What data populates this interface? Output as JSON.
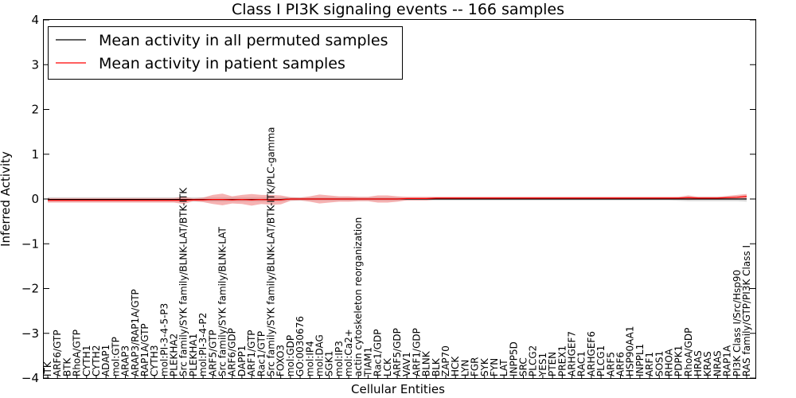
{
  "chart_data": {
    "type": "line",
    "title": "Class I PI3K signaling events -- 166 samples",
    "xlabel": "Cellular Entities",
    "ylabel": "Inferred Activity",
    "ylim": [
      -4,
      4
    ],
    "yticks": [
      "−4",
      "−3",
      "−2",
      "−1",
      "0",
      "1",
      "2",
      "3",
      "4"
    ],
    "grid": false,
    "legend_position": "top-left",
    "categories": [
      "ITK",
      "ARF6/GTP",
      "BTK",
      "RhoA/GTP",
      "CYTH1",
      "CYTH2",
      "ADAP1",
      "mol:GTP",
      "ARAP3",
      "ARAP3/RAP1A/GTP",
      "RAP1A/GTP",
      "CYTH3",
      "mol:PI-3-4-5-P3",
      "PLEKHA2",
      "Src family/SYK family/BLNK-LAT/BTK-ITK",
      "PLEKHA1",
      "mol:PI-3-4-P2",
      "ARF5/GTP",
      "Src family/SYK family/BLNK-LAT",
      "ARF6/GDP",
      "DAPP1",
      "ARF1/GTP",
      "Rac1/GTP",
      "Src family/SYK family/BLNK-LAT/BTK-ITK/PLC-gamma",
      "FOXO3",
      "mol:GDP",
      "GO:0030676",
      "mol:IP4",
      "mol:DAG",
      "SGK1",
      "mol:IP3",
      "mol:Ca2+",
      "actin cytoskeleton reorganization",
      "TIAM1",
      "Rac1/GDP",
      "LCK",
      "ARF5/GDP",
      "VAV1",
      "ARF1/GDP",
      "BLNK",
      "BLK",
      "ZAP70",
      "HCK",
      "LYN",
      "FGR",
      "SYK",
      "FYN",
      "LAT",
      "INPP5D",
      "SRC",
      "PLCG2",
      "YES1",
      "PTEN",
      "PREX1",
      "ARHGEF7",
      "RAC1",
      "ARHGEF6",
      "PLCG1",
      "ARF5",
      "ARF6",
      "HSP90AA1",
      "INPPL1",
      "ARF1",
      "SOS1",
      "RHOA",
      "PDPK1",
      "RhoA/GDP",
      "HRAS",
      "KRAS",
      "NRAS",
      "RAP1A",
      "PI3K Class I/Src/Hsp90",
      "RAS family/GTP/PI3K Class I"
    ],
    "series": [
      {
        "name": "Mean activity in all permuted samples",
        "color": "#000000",
        "values": [
          -0.01,
          -0.01,
          -0.01,
          -0.01,
          -0.01,
          -0.01,
          -0.01,
          -0.01,
          -0.01,
          -0.01,
          -0.01,
          -0.01,
          -0.01,
          -0.01,
          -0.01,
          -0.01,
          -0.01,
          -0.01,
          -0.01,
          -0.01,
          -0.01,
          -0.01,
          -0.01,
          -0.01,
          -0.01,
          0,
          0,
          0,
          0,
          0,
          0,
          0,
          0,
          0,
          0,
          0,
          0,
          0,
          0,
          0,
          0,
          0,
          0,
          0,
          0,
          0,
          0,
          0,
          0,
          0,
          0,
          0,
          0,
          0,
          0,
          0,
          0,
          0,
          0,
          0,
          0,
          0,
          0,
          0,
          0,
          0,
          0,
          0,
          0,
          0,
          0,
          0,
          0
        ],
        "band": [
          0.05,
          0.05,
          0.05,
          0.05,
          0.05,
          0.05,
          0.05,
          0.05,
          0.05,
          0.05,
          0.05,
          0.05,
          0.05,
          0.05,
          0.05,
          0.05,
          0.05,
          0.05,
          0.05,
          0.05,
          0.05,
          0.05,
          0.05,
          0.05,
          0.05,
          0.04,
          0.04,
          0.04,
          0.04,
          0.04,
          0.04,
          0.04,
          0.04,
          0.04,
          0.04,
          0.04,
          0.04,
          0.03,
          0.03,
          0.03,
          0.03,
          0.03,
          0.03,
          0.03,
          0.03,
          0.03,
          0.03,
          0.03,
          0.03,
          0.03,
          0.03,
          0.03,
          0.03,
          0.03,
          0.03,
          0.03,
          0.03,
          0.03,
          0.03,
          0.03,
          0.03,
          0.03,
          0.03,
          0.03,
          0.03,
          0.04,
          0.05,
          0.05,
          0.05,
          0.05,
          0.05,
          0.05,
          0.06
        ],
        "band_color": "#bbbbbb"
      },
      {
        "name": "Mean activity in patient samples",
        "color": "#ff0000",
        "values": [
          -0.03,
          -0.03,
          -0.03,
          -0.03,
          -0.03,
          -0.03,
          -0.03,
          -0.03,
          -0.03,
          -0.03,
          -0.03,
          -0.03,
          -0.03,
          -0.03,
          -0.03,
          -0.02,
          -0.02,
          -0.01,
          -0.01,
          -0.02,
          -0.01,
          -0.02,
          -0.01,
          -0.02,
          -0.02,
          0,
          0,
          0,
          0,
          0,
          0,
          0,
          0,
          0,
          0,
          0,
          0,
          0.01,
          0.01,
          0.01,
          0.02,
          0.02,
          0.02,
          0.02,
          0.02,
          0.02,
          0.02,
          0.02,
          0.02,
          0.02,
          0.02,
          0.02,
          0.02,
          0.02,
          0.02,
          0.02,
          0.02,
          0.02,
          0.02,
          0.02,
          0.02,
          0.02,
          0.02,
          0.02,
          0.02,
          0.02,
          0.03,
          0.02,
          0.02,
          0.02,
          0.03,
          0.04,
          0.06
        ],
        "band": [
          0.05,
          0.05,
          0.05,
          0.05,
          0.05,
          0.05,
          0.05,
          0.05,
          0.05,
          0.05,
          0.05,
          0.05,
          0.05,
          0.05,
          0.08,
          0.03,
          0.05,
          0.1,
          0.13,
          0.08,
          0.1,
          0.13,
          0.1,
          0.11,
          0.1,
          0.04,
          0.03,
          0.06,
          0.1,
          0.08,
          0.06,
          0.06,
          0.05,
          0.05,
          0.08,
          0.08,
          0.06,
          0.04,
          0.04,
          0.04,
          0.03,
          0.03,
          0.03,
          0.03,
          0.03,
          0.03,
          0.03,
          0.03,
          0.03,
          0.03,
          0.03,
          0.03,
          0.03,
          0.03,
          0.03,
          0.03,
          0.03,
          0.03,
          0.03,
          0.03,
          0.03,
          0.03,
          0.03,
          0.03,
          0.03,
          0.03,
          0.05,
          0.03,
          0.03,
          0.03,
          0.04,
          0.05,
          0.05
        ],
        "band_color": "#f08080"
      }
    ]
  }
}
